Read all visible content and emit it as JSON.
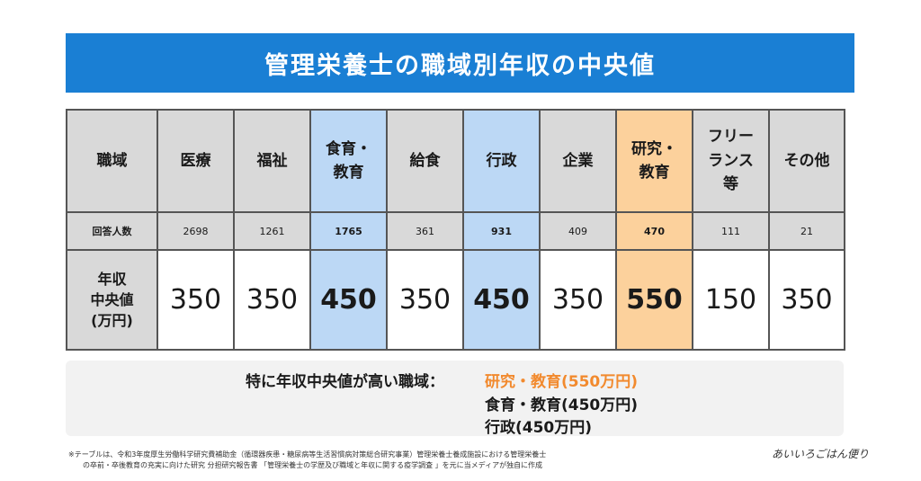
{
  "title": "管理栄養士の職域別年収の中央値",
  "table": {
    "header_label": "職域",
    "count_label": "回答人数",
    "median_label_lines": [
      "年収",
      "中央値",
      "(万円)"
    ],
    "columns": [
      {
        "name_lines": [
          "医療"
        ],
        "count": "2698",
        "median": "350",
        "highlight": "none"
      },
      {
        "name_lines": [
          "福祉"
        ],
        "count": "1261",
        "median": "350",
        "highlight": "none"
      },
      {
        "name_lines": [
          "食育・",
          "教育"
        ],
        "count": "1765",
        "median": "450",
        "highlight": "blue"
      },
      {
        "name_lines": [
          "給食"
        ],
        "count": "361",
        "median": "350",
        "highlight": "none"
      },
      {
        "name_lines": [
          "行政"
        ],
        "count": "931",
        "median": "450",
        "highlight": "blue"
      },
      {
        "name_lines": [
          "企業"
        ],
        "count": "409",
        "median": "350",
        "highlight": "none"
      },
      {
        "name_lines": [
          "研究・",
          "教育"
        ],
        "count": "470",
        "median": "550",
        "highlight": "orange"
      },
      {
        "name_lines": [
          "フリー",
          "ランス",
          "等"
        ],
        "count": "111",
        "median": "150",
        "highlight": "none"
      },
      {
        "name_lines": [
          "その他"
        ],
        "count": "21",
        "median": "350",
        "highlight": "none"
      }
    ]
  },
  "summary": {
    "label": "特に年収中央値が高い職域：",
    "items": [
      "研究・教育(550万円)",
      "食育・教育(450万円)",
      "行政(450万円)"
    ]
  },
  "footnote": {
    "line1": "※テーブルは、令和3年度厚生労働科学研究費補助金（循環器疾患・糖尿病等生活習慣病対策総合研究事業）管理栄養士養成施設における管理栄養士",
    "line2": "の卒前・卒後教育の充実に向けた研究 分担研究報告書 「管理栄養士の学歴及び職域と年収に関する疫学調査 」を元に当メディアが独自に作成"
  },
  "logo_text": "あいいろごはん便り",
  "colors": {
    "title_bg": "#1a7fd4",
    "highlight_blue": "#bcd8f5",
    "highlight_orange": "#fcd19c",
    "summary_accent": "#f28a2e"
  },
  "chart_data": {
    "type": "table",
    "title": "管理栄養士の職域別年収の中央値",
    "categories": [
      "医療",
      "福祉",
      "食育・教育",
      "給食",
      "行政",
      "企業",
      "研究・教育",
      "フリーランス等",
      "その他"
    ],
    "series": [
      {
        "name": "回答人数",
        "values": [
          2698,
          1261,
          1765,
          361,
          931,
          409,
          470,
          111,
          21
        ]
      },
      {
        "name": "年収中央値(万円)",
        "values": [
          350,
          350,
          450,
          350,
          450,
          350,
          550,
          150,
          350
        ]
      }
    ]
  }
}
